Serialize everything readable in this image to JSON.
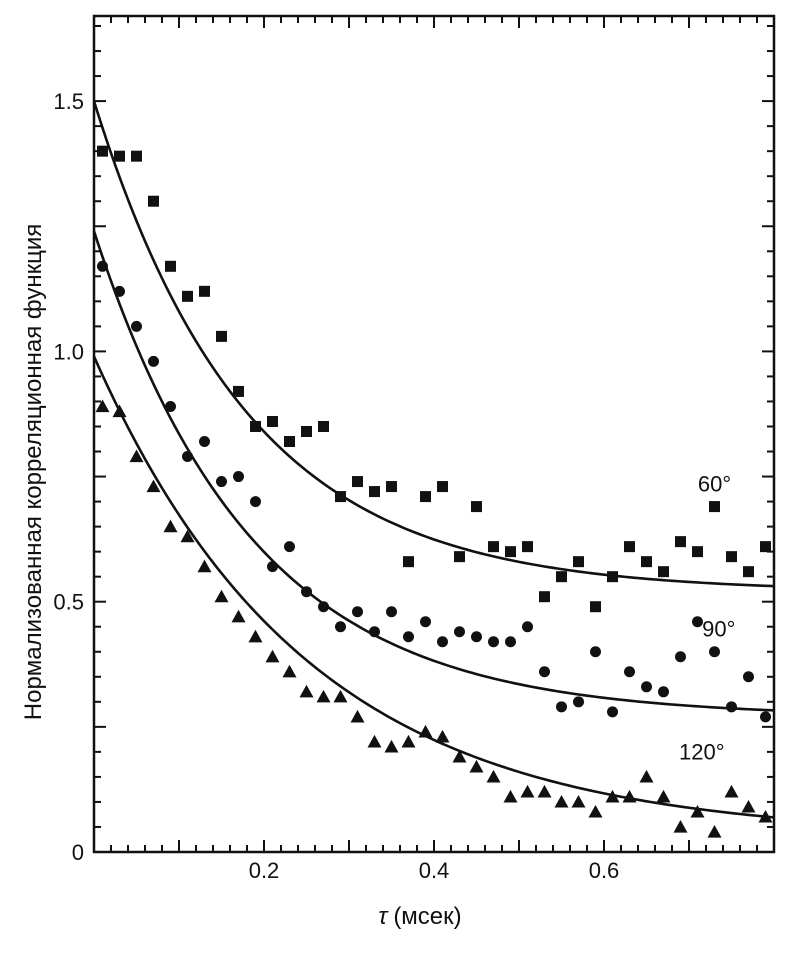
{
  "chart_data": {
    "type": "scatter",
    "title": "",
    "xlabel_symbol": "τ",
    "xlabel_unit": "(мсек)",
    "ylabel": "Нормализованная корреляционная функция",
    "xlim": [
      0,
      0.8
    ],
    "ylim": [
      0,
      1.67
    ],
    "x_ticks_minor_step": 0.02,
    "y_ticks_minor_step": 0.05,
    "x_tick_labels": [
      {
        "value": 0.2,
        "label": "0.2"
      },
      {
        "value": 0.4,
        "label": "0.4"
      },
      {
        "value": 0.6,
        "label": "0.6"
      }
    ],
    "y_tick_labels": [
      {
        "value": 0,
        "label": "0"
      },
      {
        "value": 0.5,
        "label": "0.5"
      },
      {
        "value": 1.0,
        "label": "1.0"
      },
      {
        "value": 1.5,
        "label": "1.5"
      }
    ],
    "grid": false,
    "series": [
      {
        "name": "60°",
        "marker": "square",
        "fit": {
          "a": 0.52,
          "b": 0.98,
          "k": 5.6
        },
        "points": [
          [
            0.01,
            1.4
          ],
          [
            0.03,
            1.39
          ],
          [
            0.05,
            1.39
          ],
          [
            0.07,
            1.3
          ],
          [
            0.09,
            1.17
          ],
          [
            0.11,
            1.11
          ],
          [
            0.13,
            1.12
          ],
          [
            0.15,
            1.03
          ],
          [
            0.17,
            0.92
          ],
          [
            0.19,
            0.85
          ],
          [
            0.21,
            0.86
          ],
          [
            0.23,
            0.82
          ],
          [
            0.25,
            0.84
          ],
          [
            0.27,
            0.85
          ],
          [
            0.29,
            0.71
          ],
          [
            0.31,
            0.74
          ],
          [
            0.33,
            0.72
          ],
          [
            0.35,
            0.73
          ],
          [
            0.37,
            0.58
          ],
          [
            0.39,
            0.71
          ],
          [
            0.41,
            0.73
          ],
          [
            0.43,
            0.59
          ],
          [
            0.45,
            0.69
          ],
          [
            0.47,
            0.61
          ],
          [
            0.49,
            0.6
          ],
          [
            0.51,
            0.61
          ],
          [
            0.53,
            0.51
          ],
          [
            0.55,
            0.55
          ],
          [
            0.57,
            0.58
          ],
          [
            0.59,
            0.49
          ],
          [
            0.61,
            0.55
          ],
          [
            0.63,
            0.61
          ],
          [
            0.65,
            0.58
          ],
          [
            0.67,
            0.56
          ],
          [
            0.69,
            0.62
          ],
          [
            0.71,
            0.6
          ],
          [
            0.73,
            0.69
          ],
          [
            0.75,
            0.59
          ],
          [
            0.77,
            0.56
          ],
          [
            0.79,
            0.61
          ]
        ]
      },
      {
        "name": "90°",
        "marker": "circle",
        "fit": {
          "a": 0.27,
          "b": 0.97,
          "k": 5.4
        },
        "points": [
          [
            0.01,
            1.17
          ],
          [
            0.03,
            1.12
          ],
          [
            0.05,
            1.05
          ],
          [
            0.07,
            0.98
          ],
          [
            0.09,
            0.89
          ],
          [
            0.11,
            0.79
          ],
          [
            0.13,
            0.82
          ],
          [
            0.15,
            0.74
          ],
          [
            0.17,
            0.75
          ],
          [
            0.19,
            0.7
          ],
          [
            0.21,
            0.57
          ],
          [
            0.23,
            0.61
          ],
          [
            0.25,
            0.52
          ],
          [
            0.27,
            0.49
          ],
          [
            0.29,
            0.45
          ],
          [
            0.31,
            0.48
          ],
          [
            0.33,
            0.44
          ],
          [
            0.35,
            0.48
          ],
          [
            0.37,
            0.43
          ],
          [
            0.39,
            0.46
          ],
          [
            0.41,
            0.42
          ],
          [
            0.43,
            0.44
          ],
          [
            0.45,
            0.43
          ],
          [
            0.47,
            0.42
          ],
          [
            0.49,
            0.42
          ],
          [
            0.51,
            0.45
          ],
          [
            0.53,
            0.36
          ],
          [
            0.55,
            0.29
          ],
          [
            0.57,
            0.3
          ],
          [
            0.59,
            0.4
          ],
          [
            0.61,
            0.28
          ],
          [
            0.63,
            0.36
          ],
          [
            0.65,
            0.33
          ],
          [
            0.67,
            0.32
          ],
          [
            0.69,
            0.39
          ],
          [
            0.71,
            0.46
          ],
          [
            0.73,
            0.4
          ],
          [
            0.75,
            0.29
          ],
          [
            0.77,
            0.35
          ],
          [
            0.79,
            0.27
          ]
        ]
      },
      {
        "name": "120°",
        "marker": "triangle",
        "fit": {
          "a": 0.03,
          "b": 0.96,
          "k": 4.0
        },
        "points": [
          [
            0.01,
            0.89
          ],
          [
            0.03,
            0.88
          ],
          [
            0.05,
            0.79
          ],
          [
            0.07,
            0.73
          ],
          [
            0.09,
            0.65
          ],
          [
            0.11,
            0.63
          ],
          [
            0.13,
            0.57
          ],
          [
            0.15,
            0.51
          ],
          [
            0.17,
            0.47
          ],
          [
            0.19,
            0.43
          ],
          [
            0.21,
            0.39
          ],
          [
            0.23,
            0.36
          ],
          [
            0.25,
            0.32
          ],
          [
            0.27,
            0.31
          ],
          [
            0.29,
            0.31
          ],
          [
            0.31,
            0.27
          ],
          [
            0.33,
            0.22
          ],
          [
            0.35,
            0.21
          ],
          [
            0.37,
            0.22
          ],
          [
            0.39,
            0.24
          ],
          [
            0.41,
            0.23
          ],
          [
            0.43,
            0.19
          ],
          [
            0.45,
            0.17
          ],
          [
            0.47,
            0.15
          ],
          [
            0.49,
            0.11
          ],
          [
            0.51,
            0.12
          ],
          [
            0.53,
            0.12
          ],
          [
            0.55,
            0.1
          ],
          [
            0.57,
            0.1
          ],
          [
            0.59,
            0.08
          ],
          [
            0.61,
            0.11
          ],
          [
            0.63,
            0.11
          ],
          [
            0.65,
            0.15
          ],
          [
            0.67,
            0.11
          ],
          [
            0.69,
            0.05
          ],
          [
            0.71,
            0.08
          ],
          [
            0.73,
            0.04
          ],
          [
            0.75,
            0.12
          ],
          [
            0.77,
            0.09
          ],
          [
            0.79,
            0.07
          ]
        ]
      }
    ]
  }
}
